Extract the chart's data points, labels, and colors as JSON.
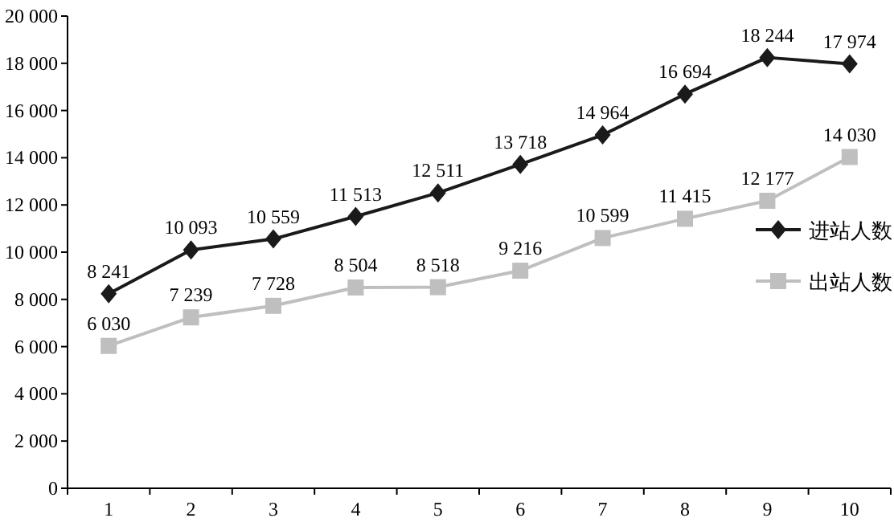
{
  "chart_data": {
    "type": "line",
    "categories": [
      "1",
      "2",
      "3",
      "4",
      "5",
      "6",
      "7",
      "8",
      "9",
      "10"
    ],
    "series": [
      {
        "name": "进站人数",
        "color": "#1a1a1a",
        "marker": "diamond",
        "values": [
          8241,
          10093,
          10559,
          11513,
          12511,
          13718,
          14964,
          16694,
          18244,
          17974
        ],
        "value_labels": [
          "8 241",
          "10 093",
          "10 559",
          "11 513",
          "12 511",
          "13 718",
          "14 964",
          "16 694",
          "18 244",
          "17 974"
        ]
      },
      {
        "name": "出站人数",
        "color": "#bfbfbf",
        "marker": "square",
        "values": [
          6030,
          7239,
          7728,
          8504,
          8518,
          9216,
          10599,
          11415,
          12177,
          14030
        ],
        "value_labels": [
          "6 030",
          "7 239",
          "7 728",
          "8 504",
          "8 518",
          "9 216",
          "10 599",
          "11 415",
          "12 177",
          "14 030"
        ]
      }
    ],
    "ylim": [
      0,
      20000
    ],
    "yticks": [
      0,
      {
        "value": 2000,
        "label": "2 000"
      },
      {
        "value": 4000,
        "label": "4 000"
      },
      {
        "value": 6000,
        "label": "6 000"
      },
      {
        "value": 8000,
        "label": "8 000"
      },
      {
        "value": 10000,
        "label": "10 000"
      },
      {
        "value": 12000,
        "label": "12 000"
      },
      {
        "value": 14000,
        "label": "14 000"
      },
      {
        "value": 16000,
        "label": "16 000"
      },
      {
        "value": 18000,
        "label": "18 000"
      },
      {
        "value": 20000,
        "label": "20 000"
      }
    ],
    "grid": false,
    "legend": "right",
    "line_style": "solid"
  }
}
